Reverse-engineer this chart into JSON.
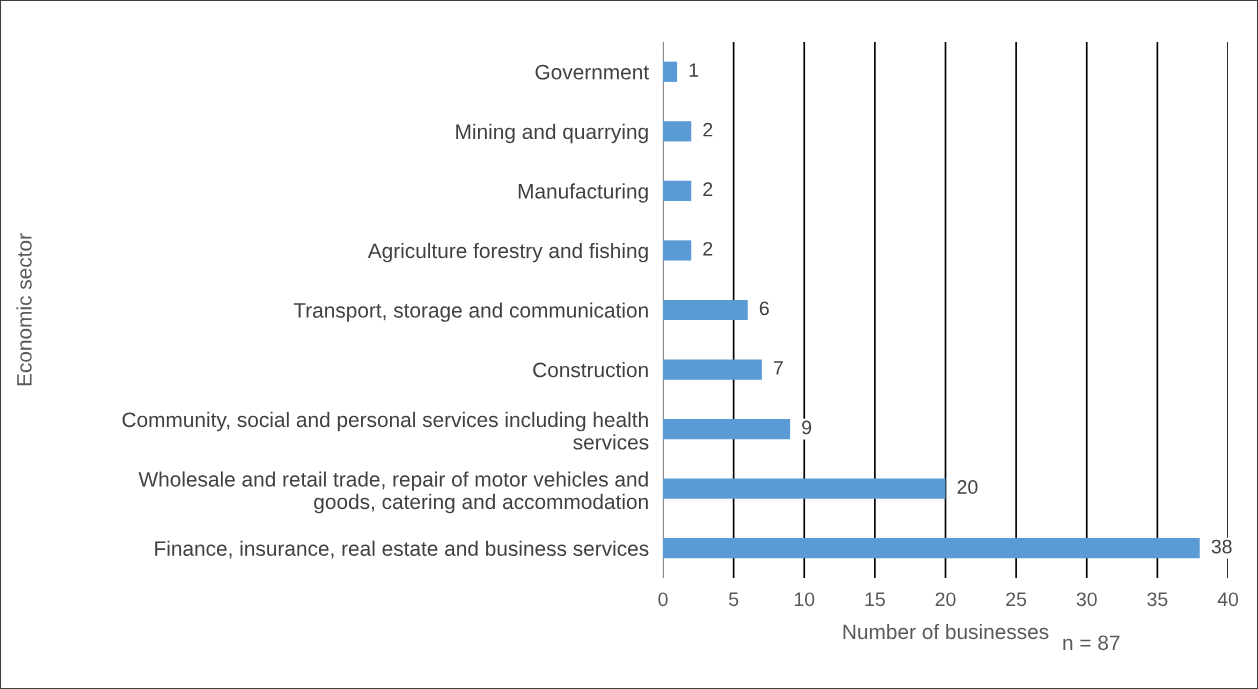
{
  "chart_data": {
    "type": "bar",
    "orientation": "horizontal",
    "categories": [
      "Government",
      "Mining and quarrying",
      "Manufacturing",
      "Agriculture forestry and fishing",
      "Transport, storage and communication",
      "Construction",
      "Community, social and personal services including health\nservices",
      "Wholesale and retail trade, repair of motor vehicles and\ngoods, catering and accommodation",
      "Finance, insurance, real estate and business services"
    ],
    "values": [
      1,
      2,
      2,
      2,
      6,
      7,
      9,
      20,
      38
    ],
    "color": "#5b9bd5",
    "xlabel": "Number of businesses",
    "ylabel": "Economic sector",
    "annotations": [
      "n = 87"
    ],
    "xlim": [
      0,
      40
    ],
    "xticks": [
      0,
      5,
      10,
      15,
      20,
      25,
      30,
      35,
      40
    ],
    "grid": "x",
    "data_labels": true
  }
}
